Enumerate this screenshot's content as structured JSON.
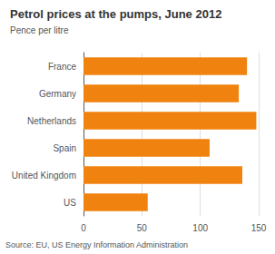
{
  "chart_data": {
    "type": "bar",
    "orientation": "horizontal",
    "title": "Petrol prices at the pumps, June 2012",
    "subtitle": "Pence per litre",
    "annotation": "Source: EU, US Energy Information Administration",
    "categories": [
      "France",
      "Germany",
      "Netherlands",
      "Spain",
      "United Kingdom",
      "US"
    ],
    "values": [
      140,
      133,
      148,
      108,
      136,
      55
    ],
    "color": "#f0830f",
    "xlim": [
      0,
      150
    ],
    "xticks": [
      0,
      50,
      100,
      150
    ],
    "grid": true
  }
}
